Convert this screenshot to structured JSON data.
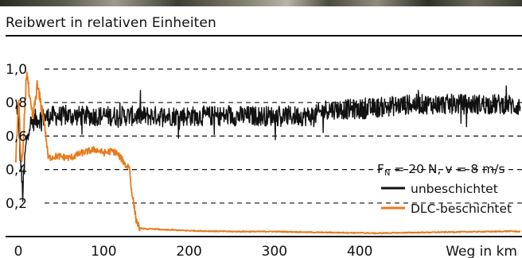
{
  "chart_data": {
    "type": "line",
    "title": "Reibwert in relativen Einheiten",
    "xlabel": "Weg in km",
    "ylabel": "",
    "xlim": [
      -15,
      590
    ],
    "ylim": [
      0,
      1.0
    ],
    "x_ticks": [
      0,
      100,
      200,
      300,
      400
    ],
    "x_tick_labels": [
      "0",
      "100",
      "200",
      "300",
      "400"
    ],
    "y_ticks": [
      0.2,
      0.4,
      0.6,
      0.8,
      1.0
    ],
    "y_tick_labels": [
      "0,2",
      "0,4",
      "0,6",
      "0,8",
      "1,0"
    ],
    "grid": "horizontal dashed",
    "legend_position": "right",
    "annotation": {
      "main": "F",
      "sub": "N",
      "rest": " = 20 N, v = 8 m/s"
    },
    "series": [
      {
        "name": "unbeschichtet",
        "color": "#111111",
        "noise_amplitude": 0.06,
        "x": [
          -3,
          0,
          2,
          5,
          8,
          12,
          20,
          40,
          60,
          80,
          100,
          120,
          140,
          160,
          180,
          200,
          220,
          250,
          280,
          300,
          320,
          340,
          350,
          360,
          380,
          400,
          420,
          440,
          460,
          480,
          500,
          520,
          540,
          560,
          575,
          580,
          588
        ],
        "y": [
          0.8,
          0.74,
          0.5,
          0.25,
          0.5,
          0.66,
          0.7,
          0.72,
          0.72,
          0.72,
          0.72,
          0.72,
          0.72,
          0.72,
          0.72,
          0.72,
          0.72,
          0.72,
          0.72,
          0.72,
          0.72,
          0.72,
          0.73,
          0.76,
          0.76,
          0.76,
          0.77,
          0.78,
          0.79,
          0.79,
          0.79,
          0.79,
          0.79,
          0.79,
          0.79,
          0.78,
          0.78
        ]
      },
      {
        "name": "DLC-beschichtet",
        "color": "#e87a1a",
        "noise_amplitude": 0.02,
        "x": [
          -3,
          0,
          1,
          3,
          5,
          8,
          10,
          13,
          17,
          22,
          30,
          35,
          45,
          60,
          75,
          90,
          100,
          110,
          115,
          123,
          126,
          130,
          132,
          135,
          138,
          142,
          150,
          160,
          170,
          180,
          200,
          250,
          300,
          350,
          400,
          420,
          440,
          480,
          520,
          560,
          575,
          588
        ],
        "y": [
          0.44,
          0.8,
          0.75,
          0.45,
          0.45,
          0.82,
          1.0,
          0.82,
          0.7,
          0.9,
          0.7,
          0.47,
          0.48,
          0.47,
          0.5,
          0.52,
          0.5,
          0.51,
          0.5,
          0.45,
          0.42,
          0.42,
          0.3,
          0.2,
          0.1,
          0.05,
          0.045,
          0.045,
          0.04,
          0.04,
          0.035,
          0.03,
          0.03,
          0.025,
          0.022,
          0.02,
          0.022,
          0.025,
          0.028,
          0.03,
          0.032,
          0.03
        ]
      }
    ]
  }
}
